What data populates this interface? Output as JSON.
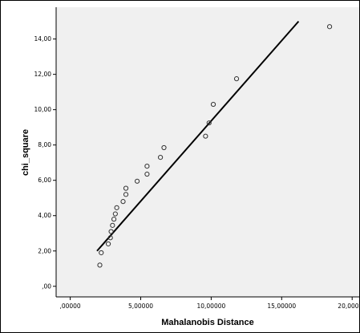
{
  "chart_data": {
    "type": "scatter",
    "xlabel": "Mahalanobis Distance",
    "ylabel": "chi_square",
    "xlim": [
      -1.0,
      20.5
    ],
    "ylim": [
      -0.6,
      15.8
    ],
    "x_ticks": [
      0,
      5,
      10,
      15,
      20
    ],
    "x_tick_labels": [
      ",00000",
      "5,00000",
      "10,00000",
      "15,00000",
      "20,00000"
    ],
    "y_ticks": [
      0,
      2,
      4,
      6,
      8,
      10,
      12,
      14
    ],
    "y_tick_labels": [
      ",00",
      "2,00",
      "4,00",
      "6,00",
      "8,00",
      "10,00",
      "12,00",
      "14,00"
    ],
    "grid": false,
    "legend": "none",
    "colors": {
      "plot_background": "#f0f0f0",
      "marker": "#333333",
      "line": "#000000",
      "axis": "#000000",
      "frame": "#000000"
    },
    "points": [
      {
        "x": 2.1,
        "y": 1.2
      },
      {
        "x": 2.2,
        "y": 1.9
      },
      {
        "x": 2.7,
        "y": 2.4
      },
      {
        "x": 2.85,
        "y": 2.75
      },
      {
        "x": 2.9,
        "y": 3.1
      },
      {
        "x": 3.0,
        "y": 3.45
      },
      {
        "x": 3.1,
        "y": 3.8
      },
      {
        "x": 3.2,
        "y": 4.1
      },
      {
        "x": 3.3,
        "y": 4.45
      },
      {
        "x": 3.75,
        "y": 4.8
      },
      {
        "x": 3.95,
        "y": 5.2
      },
      {
        "x": 3.95,
        "y": 5.55
      },
      {
        "x": 4.75,
        "y": 5.95
      },
      {
        "x": 5.45,
        "y": 6.35
      },
      {
        "x": 5.45,
        "y": 6.8
      },
      {
        "x": 6.4,
        "y": 7.3
      },
      {
        "x": 6.65,
        "y": 7.85
      },
      {
        "x": 9.6,
        "y": 8.5
      },
      {
        "x": 9.85,
        "y": 9.25
      },
      {
        "x": 10.15,
        "y": 10.3
      },
      {
        "x": 11.8,
        "y": 11.75
      },
      {
        "x": 18.4,
        "y": 14.7
      }
    ],
    "fit_line": {
      "x": [
        1.9,
        16.2
      ],
      "y": [
        2.0,
        15.0
      ]
    }
  }
}
